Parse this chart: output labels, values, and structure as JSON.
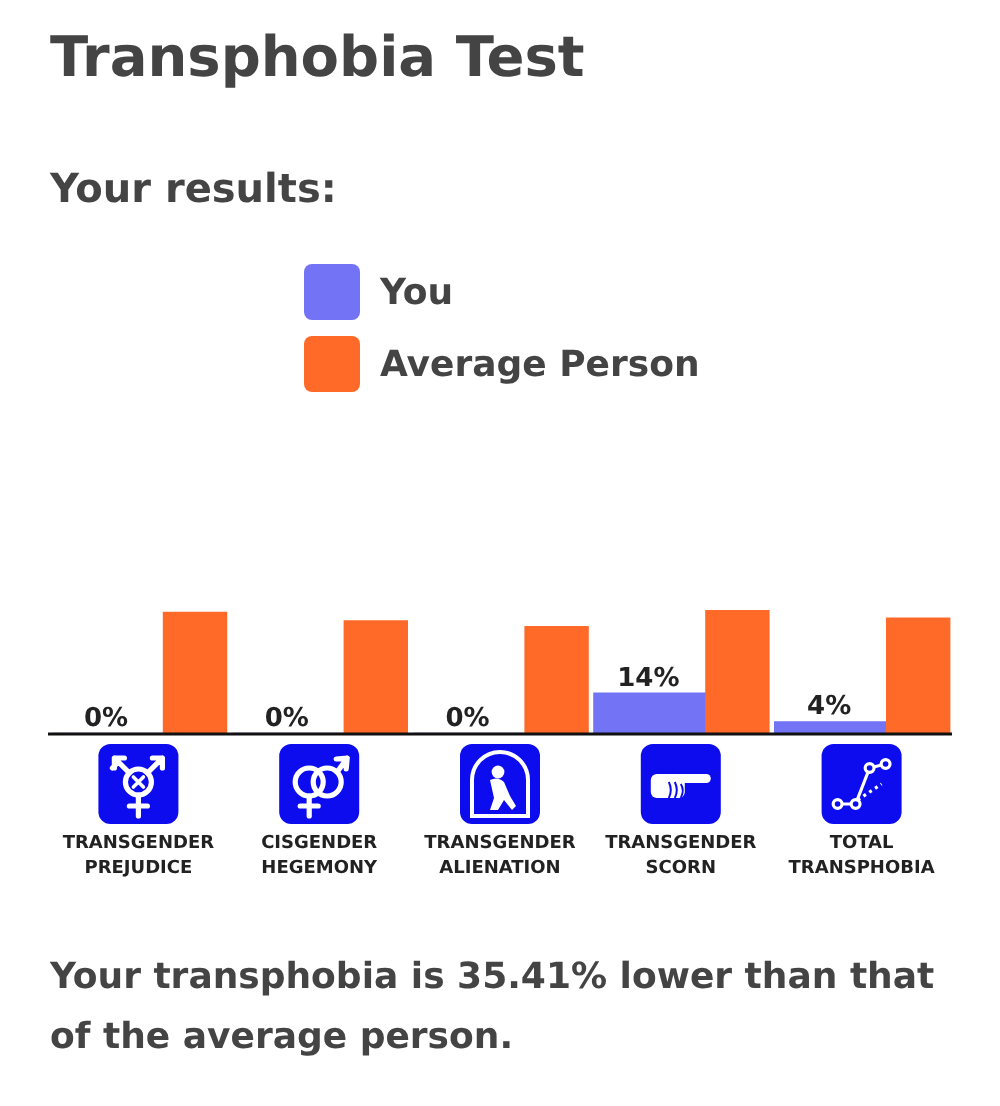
{
  "chart_data": {
    "type": "bar",
    "title": "Transphobia Test",
    "subtitle": "Your results:",
    "categories": [
      "TRANSGENDER PREJUDICE",
      "CISGENDER HEGEMONY",
      "TRANSGENDER ALIENATION",
      "TRANSGENDER SCORN",
      "TOTAL TRANSPHOBIA"
    ],
    "series": [
      {
        "name": "You",
        "color": "#7373f5",
        "values": [
          0,
          0,
          0,
          14,
          4
        ],
        "value_labels": [
          "0%",
          "0%",
          "0%",
          "14%",
          "4%"
        ]
      },
      {
        "name": "Average Person",
        "color": "#ff6a28",
        "values": [
          42,
          39,
          37,
          43,
          40
        ]
      }
    ],
    "legend": "top",
    "tick_labels": "x",
    "annotations": [
      "Your transphobia is 35.41% lower than that of the average person."
    ]
  }
}
